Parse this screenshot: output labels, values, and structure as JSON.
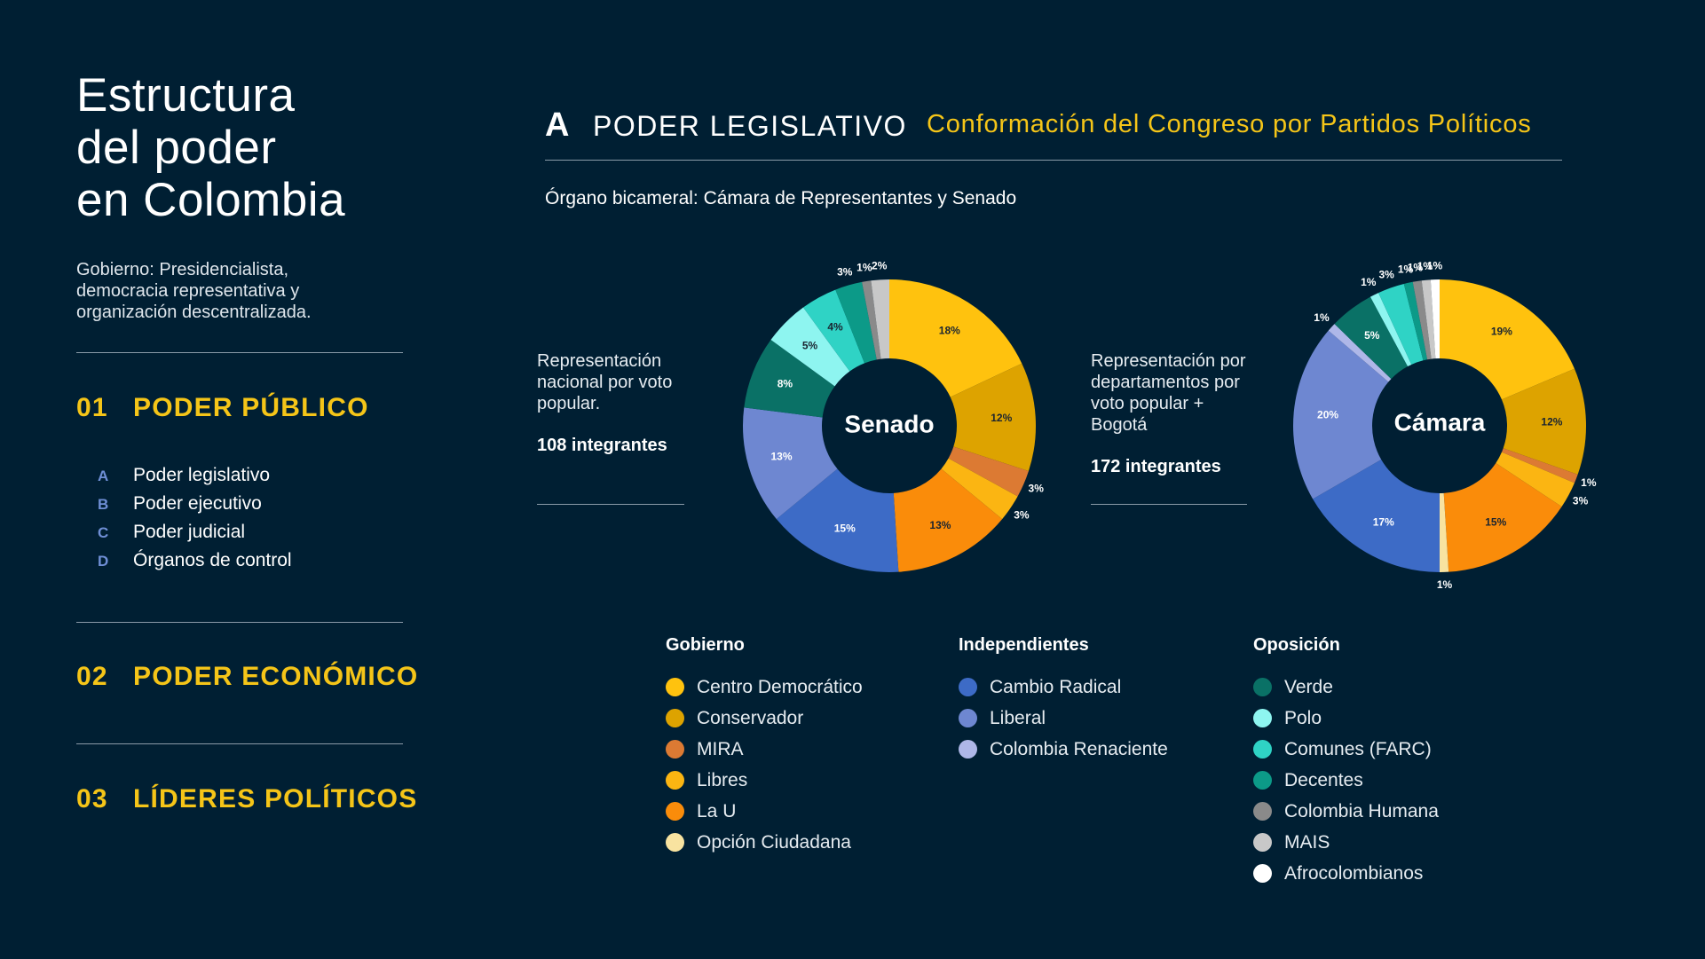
{
  "sidebar": {
    "title": "Estructura\ndel poder\nen Colombia",
    "subtitle": "Gobierno: Presidencialista,\ndemocracia representativa y\norganización descentralizada.",
    "sections": [
      {
        "num": "01",
        "label": "PODER PÚBLICO"
      },
      {
        "num": "02",
        "label": "PODER ECONÓMICO"
      },
      {
        "num": "03",
        "label": "LÍDERES POLÍTICOS"
      }
    ],
    "subitems": [
      {
        "letter": "A",
        "label": "Poder legislativo"
      },
      {
        "letter": "B",
        "label": "Poder ejecutivo"
      },
      {
        "letter": "C",
        "label": "Poder judicial"
      },
      {
        "letter": "D",
        "label": "Órganos de control"
      }
    ]
  },
  "main": {
    "letter": "A",
    "heading": "PODER LEGISLATIVO",
    "subheading": "Conformación del Congreso por Partidos Políticos",
    "organ": "Órgano bicameral: Cámara de Representantes y Senado",
    "senado": {
      "desc": "Representación\nnacional por voto\npopular.",
      "count": "108 integrantes"
    },
    "camara": {
      "desc": "Representación por\ndepartamentos por\nvoto popular +\nBogotá",
      "count": "172 integrantes"
    }
  },
  "legend": {
    "groups": [
      {
        "title": "Gobierno",
        "items": [
          {
            "label": "Centro Democrático",
            "color": "#FFC20E"
          },
          {
            "label": "Conservador",
            "color": "#DDA300"
          },
          {
            "label": "MIRA",
            "color": "#DC7A33"
          },
          {
            "label": "Libres",
            "color": "#FBB512"
          },
          {
            "label": "La U",
            "color": "#FA8C0A"
          },
          {
            "label": "Opción Ciudadana",
            "color": "#F8E3A0"
          }
        ]
      },
      {
        "title": "Independientes",
        "items": [
          {
            "label": "Cambio Radical",
            "color": "#3D6BC6"
          },
          {
            "label": "Liberal",
            "color": "#6E87D1"
          },
          {
            "label": "Colombia Renaciente",
            "color": "#AEB7E8"
          }
        ]
      },
      {
        "title": "Oposición",
        "items": [
          {
            "label": "Verde",
            "color": "#0A7166"
          },
          {
            "label": "Polo",
            "color": "#8EF5F0"
          },
          {
            "label": "Comunes (FARC)",
            "color": "#2FD3C5"
          },
          {
            "label": "Decentes",
            "color": "#0C9A88"
          },
          {
            "label": "Colombia Humana",
            "color": "#8A8A8A"
          },
          {
            "label": "MAIS",
            "color": "#C8C8C8"
          },
          {
            "label": "Afrocolombianos",
            "color": "#FFFFFF"
          }
        ]
      }
    ]
  },
  "chart_data": [
    {
      "type": "pie",
      "title": "Senado",
      "categories": [
        "Centro Democrático",
        "Conservador",
        "MIRA",
        "Libres",
        "La U",
        "Cambio Radical",
        "Liberal",
        "Verde",
        "Polo",
        "Comunes (FARC)",
        "Decentes",
        "Colombia Humana",
        "MAIS"
      ],
      "values": [
        18,
        12,
        3,
        3,
        13,
        15,
        13,
        8,
        5,
        4,
        3,
        1,
        2
      ],
      "labels": [
        "18%",
        "12%",
        "3%",
        "3%",
        "13%",
        "15%",
        "13%",
        "8%",
        "5%",
        "4%",
        "3%",
        "1%",
        "2%"
      ],
      "colors": [
        "#FFC20E",
        "#DDA300",
        "#DC7A33",
        "#FBB512",
        "#FA8C0A",
        "#3D6BC6",
        "#6E87D1",
        "#0A7166",
        "#8EF5F0",
        "#2FD3C5",
        "#0C9A88",
        "#8A8A8A",
        "#C8C8C8"
      ]
    },
    {
      "type": "pie",
      "title": "Cámara",
      "categories": [
        "Centro Democrático",
        "Conservador",
        "MIRA",
        "Libres",
        "La U",
        "Opción Ciudadana",
        "Cambio Radical",
        "Liberal",
        "Colombia Renaciente",
        "Verde",
        "Polo",
        "Comunes (FARC)",
        "Decentes",
        "Colombia Humana",
        "MAIS",
        "Afrocolombianos"
      ],
      "values": [
        19,
        12,
        1,
        3,
        15,
        1,
        17,
        20,
        1,
        5,
        1,
        3,
        1,
        1,
        1,
        1
      ],
      "labels": [
        "19%",
        "12%",
        "1%",
        "3%",
        "15%",
        "1%",
        "17%",
        "20%",
        "1%",
        "5%",
        "1%",
        "3%",
        "1%",
        "1%",
        "1%",
        "1%"
      ],
      "colors": [
        "#FFC20E",
        "#DDA300",
        "#DC7A33",
        "#FBB512",
        "#FA8C0A",
        "#F8E3A0",
        "#3D6BC6",
        "#6E87D1",
        "#AEB7E8",
        "#0A7166",
        "#8EF5F0",
        "#2FD3C5",
        "#0C9A88",
        "#8A8A8A",
        "#C8C8C8",
        "#FFFFFF"
      ]
    }
  ]
}
